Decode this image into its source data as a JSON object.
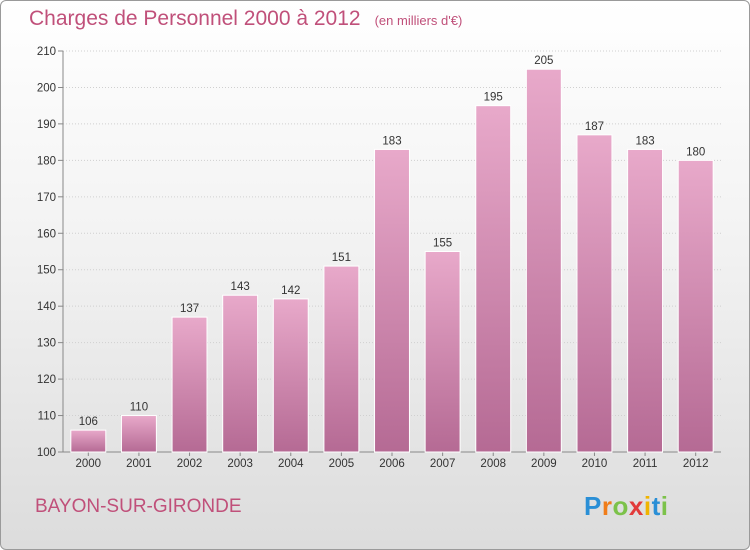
{
  "header": {
    "title": "Charges de Personnel 2000 à 2012",
    "subtitle": "(en milliers d'€)"
  },
  "location": "BAYON-SUR-GIRONDE",
  "logo": {
    "letters": [
      "P",
      "r",
      "o",
      "x",
      "i",
      "t",
      "i"
    ],
    "colors": [
      "#2a8fd6",
      "#f07d1a",
      "#7cc24a",
      "#e23b3b",
      "#f0b400",
      "#2a8fd6",
      "#7cc24a"
    ]
  },
  "colors": {
    "bar_top": "#e8a9ca",
    "bar_bottom": "#b56a94",
    "title": "#c0507a"
  },
  "chart_data": {
    "type": "bar",
    "title": "Charges de Personnel 2000 à 2012",
    "subtitle": "(en milliers d'€)",
    "categories": [
      "2000",
      "2001",
      "2002",
      "2003",
      "2004",
      "2005",
      "2006",
      "2007",
      "2008",
      "2009",
      "2010",
      "2011",
      "2012"
    ],
    "values": [
      106,
      110,
      137,
      143,
      142,
      151,
      183,
      155,
      195,
      205,
      187,
      183,
      180
    ],
    "ylim": [
      100,
      210
    ],
    "yticks": [
      100,
      110,
      120,
      130,
      140,
      150,
      160,
      170,
      180,
      190,
      200,
      210
    ],
    "grid": true,
    "data_labels": true
  }
}
